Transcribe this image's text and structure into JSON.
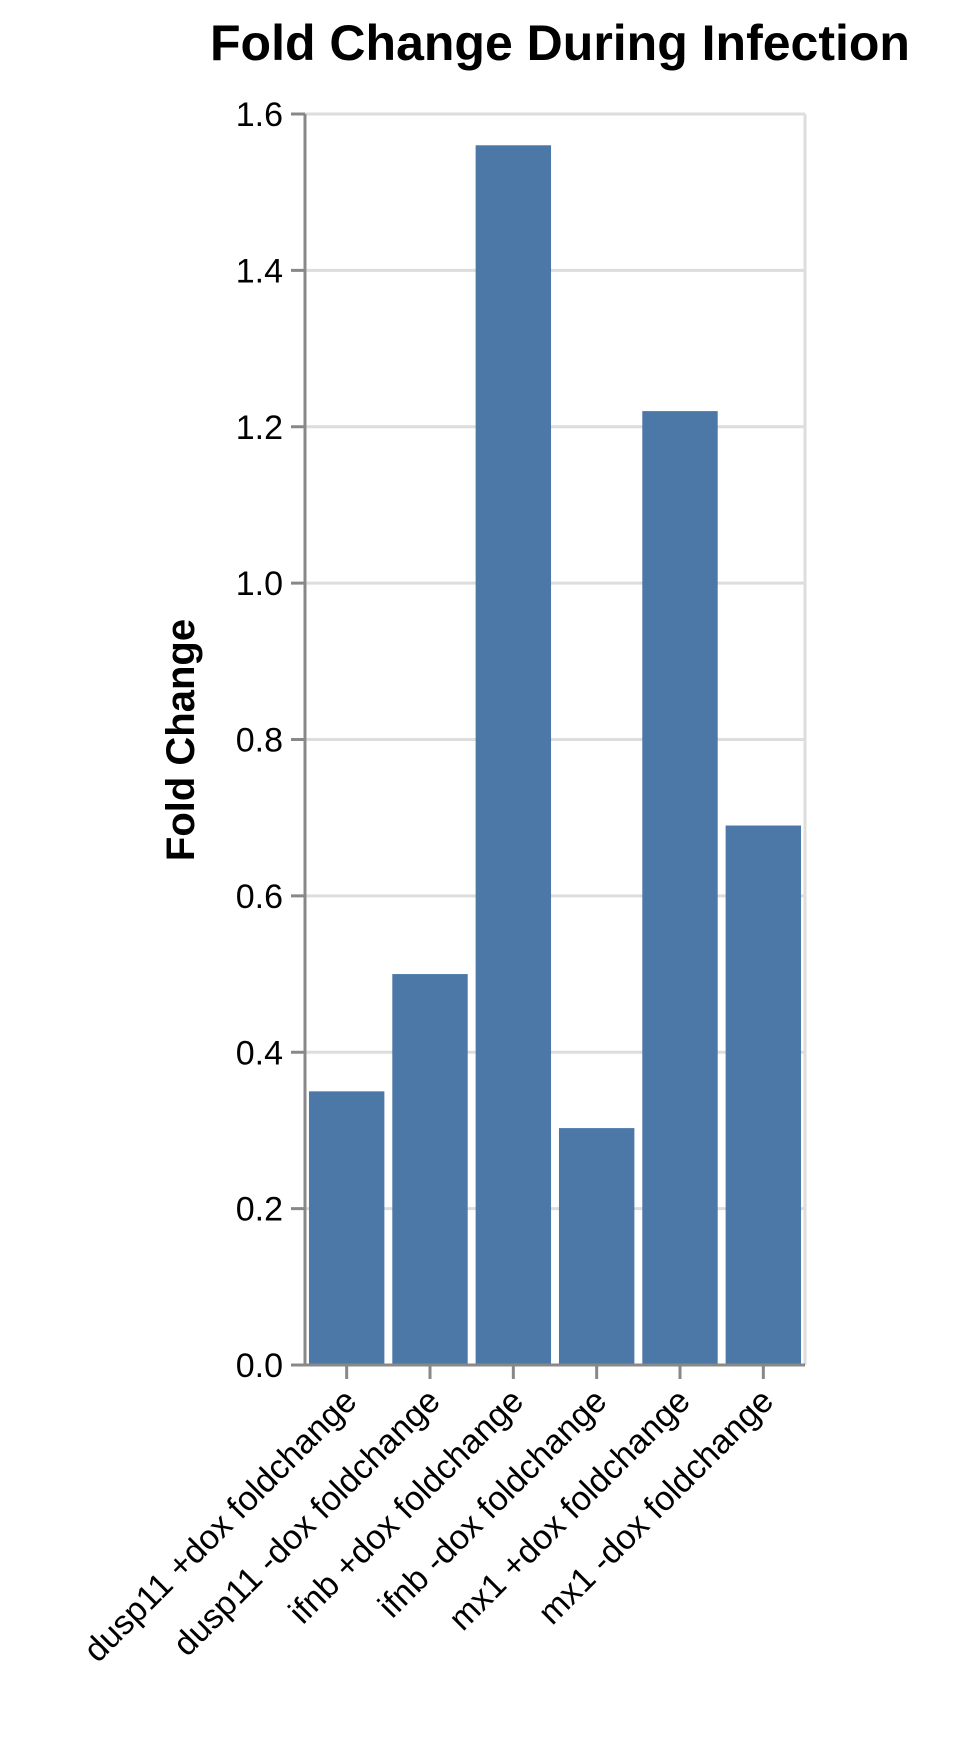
{
  "chart_data": {
    "type": "bar",
    "title": "Fold Change During Infection",
    "xlabel": "",
    "ylabel": "Fold Change",
    "categories": [
      "dusp11 +dox foldchange",
      "dusp11 -dox foldchange",
      "ifnb +dox foldchange",
      "ifnb -dox foldchange",
      "mx1 +dox foldchange",
      "mx1 -dox foldchange"
    ],
    "values": [
      0.35,
      0.5,
      1.56,
      0.303,
      1.22,
      0.69
    ],
    "ylim": [
      0,
      1.6
    ],
    "yticks": [
      "0.0",
      "0.2",
      "0.4",
      "0.6",
      "0.8",
      "1.0",
      "1.2",
      "1.4",
      "1.6"
    ],
    "grid": true,
    "legend": "none",
    "colors": {
      "bar": "#4c78a8",
      "grid": "#dddddd",
      "axis": "#888888",
      "text": "#000000"
    }
  }
}
